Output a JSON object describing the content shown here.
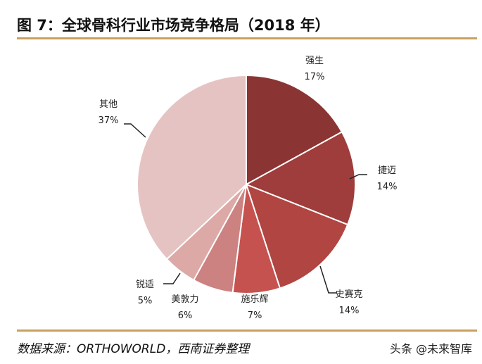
{
  "title": "图 7：全球骨科行业市场竞争格局（2018 年）",
  "source": "数据来源：ORTHOWORLD，西南证券整理",
  "watermark": "头条 @未来智库",
  "chart_data": {
    "type": "pie",
    "categories": [
      "强生",
      "捷迈",
      "史赛克",
      "施乐辉",
      "美敦力",
      "锐适",
      "其他"
    ],
    "values": [
      17,
      14,
      14,
      7,
      6,
      5,
      37
    ],
    "labels": [
      "17%",
      "14%",
      "14%",
      "7%",
      "6%",
      "5%",
      "37%"
    ],
    "colors": [
      "#8a3533",
      "#9e3d3b",
      "#b04542",
      "#c65250",
      "#cc8280",
      "#dca9a7",
      "#e6c3c3"
    ],
    "start": "top",
    "direction": "clockwise"
  }
}
